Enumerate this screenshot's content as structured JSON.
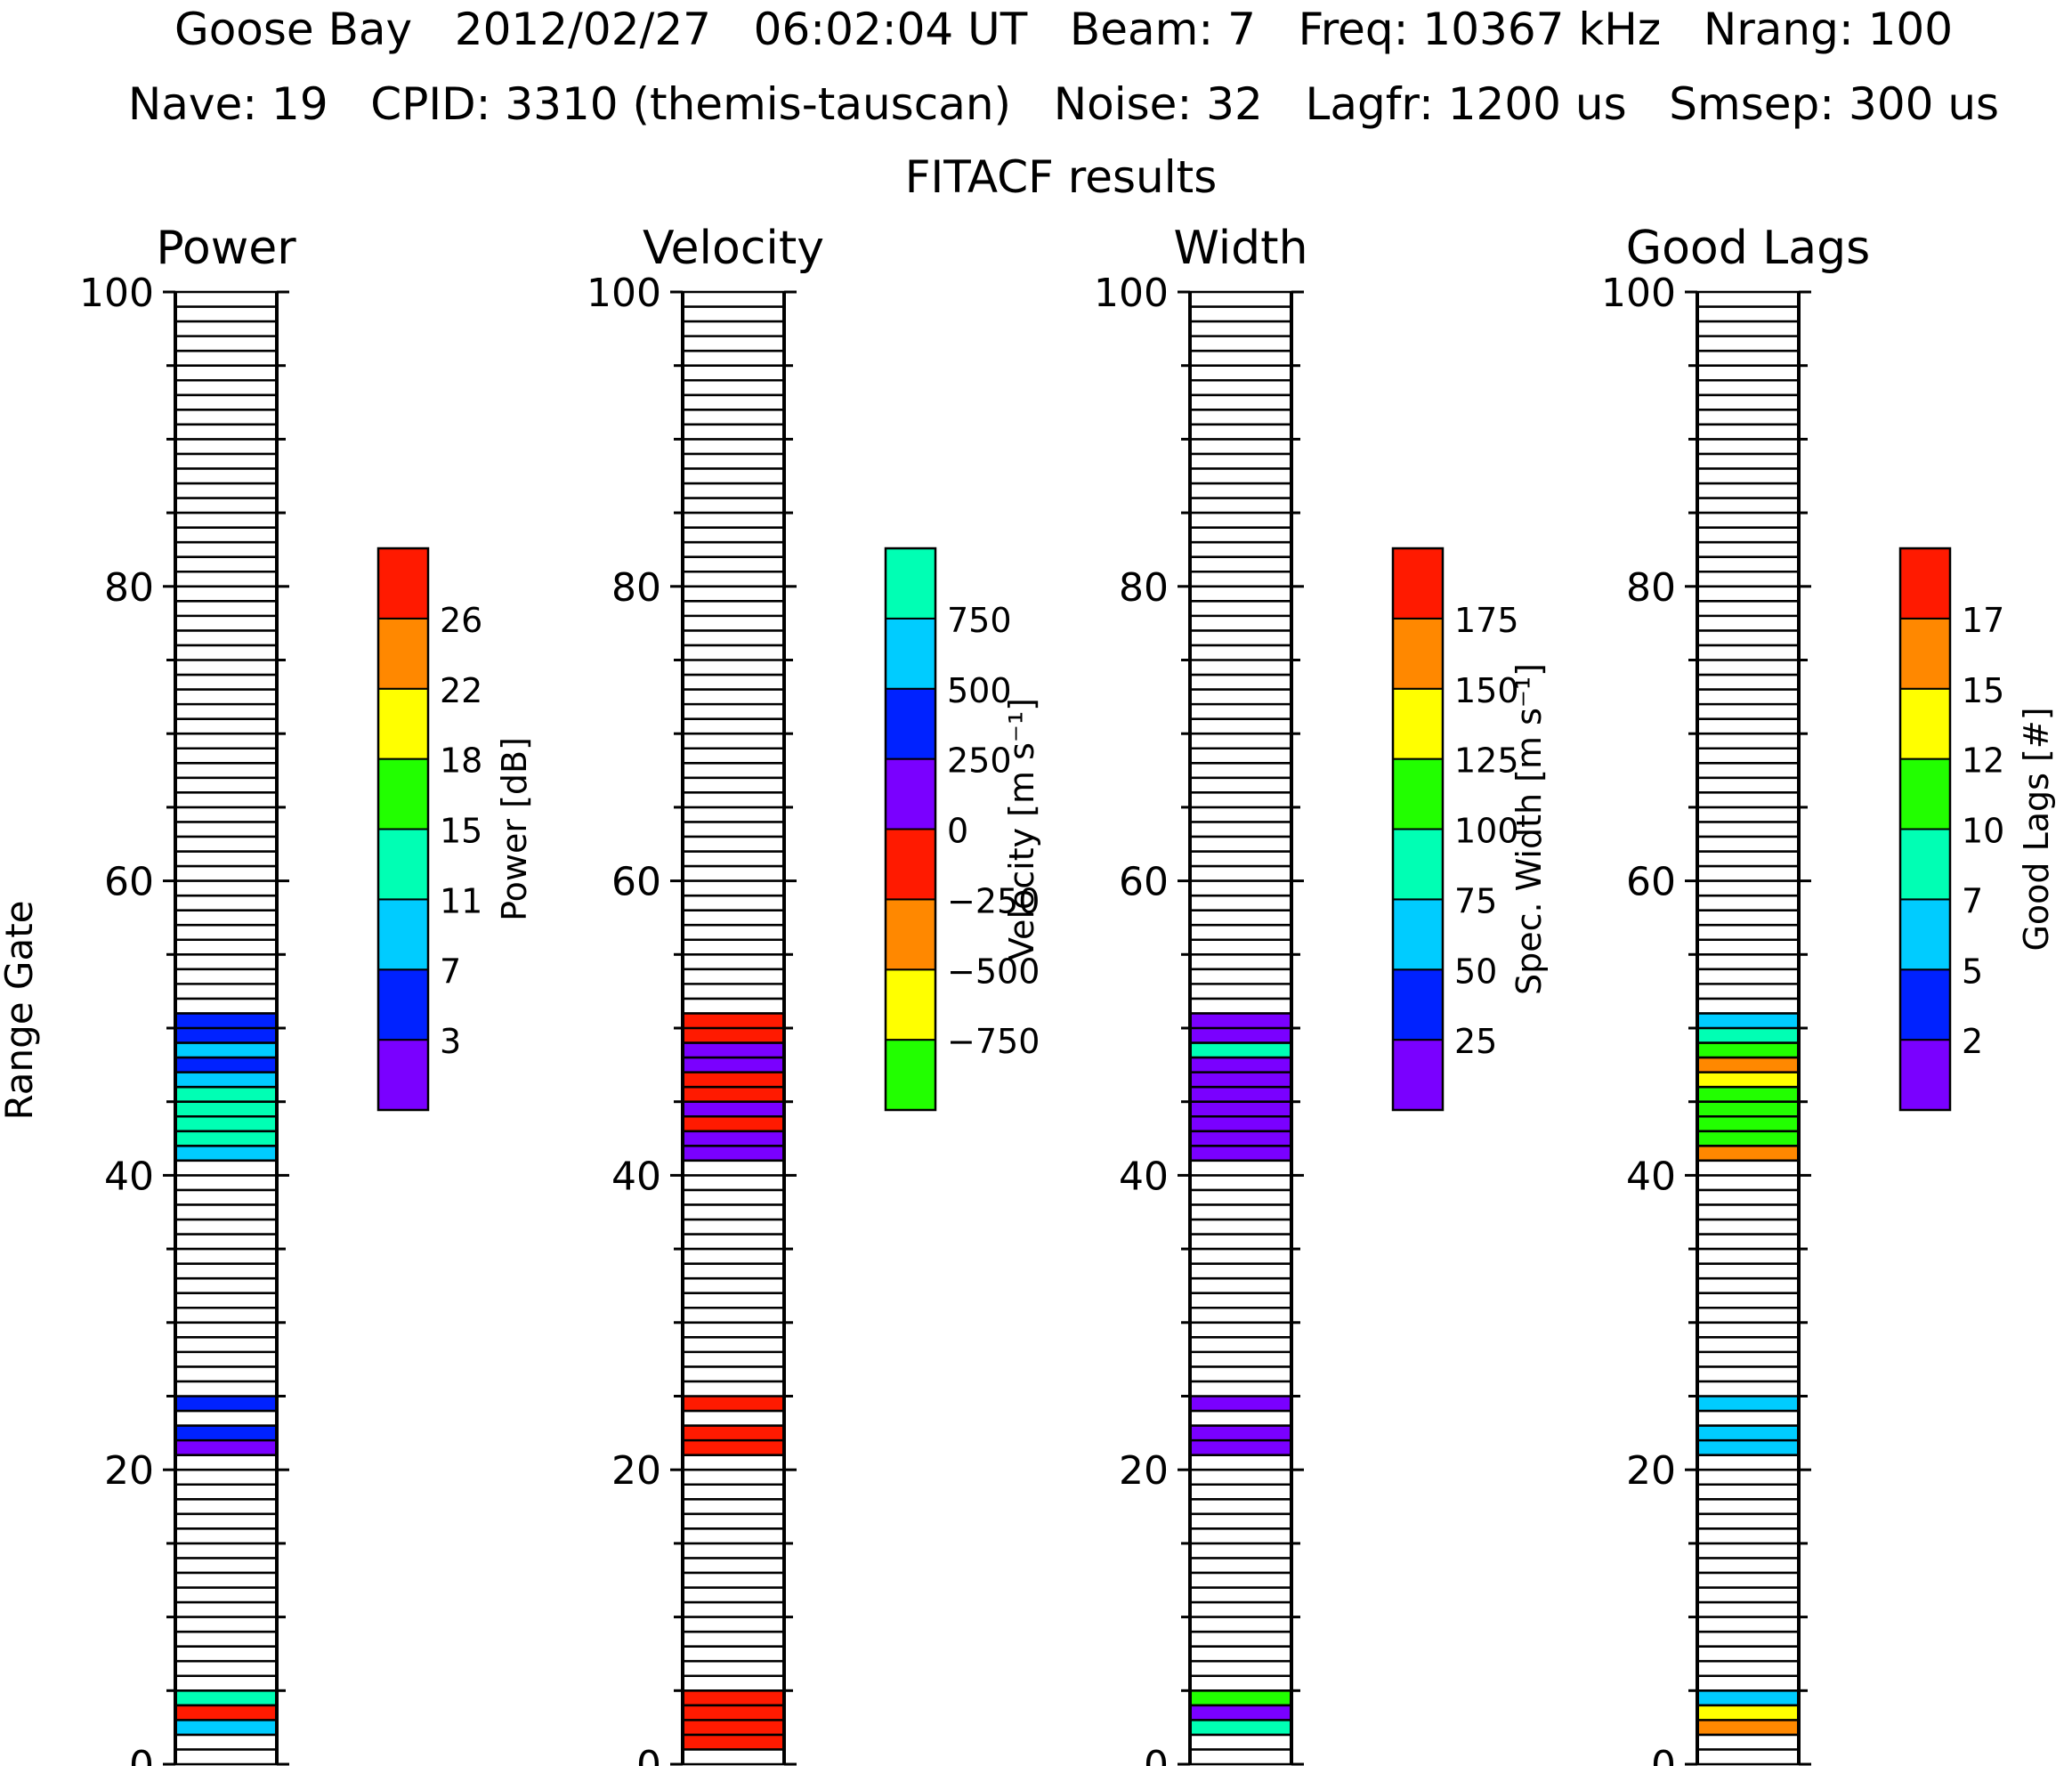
{
  "header": {
    "line1": "Goose Bay   2012/02/27   06:02:04 UT   Beam: 7   Freq: 10367 kHz   Nrang: 100",
    "line2": "Nave: 19   CPID: 3310 (themis-tauscan)   Noise: 32   Lagfr: 1200 us   Smsep: 300 us",
    "line3": "FITACF results"
  },
  "y_axis_label": "Range Gate",
  "chart_data": [
    {
      "type": "heatmap",
      "title": "Power",
      "ylabel": "Range Gate",
      "ylim": [
        0,
        100
      ],
      "yticks": [
        "0",
        "20",
        "40",
        "60",
        "80",
        "100"
      ],
      "colorbar": {
        "label": "Power [dB]",
        "colors": [
          "#7a00ff",
          "#0022ff",
          "#00ccff",
          "#00ffb4",
          "#22ff00",
          "#ffff00",
          "#ff8800",
          "#ff1a00"
        ],
        "tick_labels": [
          "3",
          "7",
          "11",
          "15",
          "18",
          "22",
          "26"
        ]
      },
      "cells": [
        {
          "gate": 2,
          "class": 2
        },
        {
          "gate": 3,
          "class": 7
        },
        {
          "gate": 4,
          "class": 3
        },
        {
          "gate": 21,
          "class": 0
        },
        {
          "gate": 22,
          "class": 1
        },
        {
          "gate": 24,
          "class": 1
        },
        {
          "gate": 41,
          "class": 2
        },
        {
          "gate": 42,
          "class": 3
        },
        {
          "gate": 43,
          "class": 3
        },
        {
          "gate": 44,
          "class": 3
        },
        {
          "gate": 45,
          "class": 3
        },
        {
          "gate": 46,
          "class": 2
        },
        {
          "gate": 47,
          "class": 1
        },
        {
          "gate": 48,
          "class": 2
        },
        {
          "gate": 49,
          "class": 1
        },
        {
          "gate": 50,
          "class": 1
        }
      ]
    },
    {
      "type": "heatmap",
      "title": "Velocity",
      "ylabel": "Range Gate",
      "ylim": [
        0,
        100
      ],
      "yticks": [
        "0",
        "20",
        "40",
        "60",
        "80",
        "100"
      ],
      "colorbar": {
        "label": "Velocity [m s⁻¹]",
        "colors": [
          "#22ff00",
          "#ffff00",
          "#ff8800",
          "#ff1a00",
          "#7a00ff",
          "#0022ff",
          "#00ccff",
          "#00ffb4"
        ],
        "tick_labels": [
          "−750",
          "−500",
          "−250",
          "0",
          "250",
          "500",
          "750"
        ]
      },
      "cells": [
        {
          "gate": 1,
          "class": 3
        },
        {
          "gate": 2,
          "class": 3
        },
        {
          "gate": 3,
          "class": 3
        },
        {
          "gate": 4,
          "class": 3
        },
        {
          "gate": 21,
          "class": 3
        },
        {
          "gate": 22,
          "class": 3
        },
        {
          "gate": 24,
          "class": 3
        },
        {
          "gate": 41,
          "class": 4
        },
        {
          "gate": 42,
          "class": 4
        },
        {
          "gate": 43,
          "class": 3
        },
        {
          "gate": 44,
          "class": 4
        },
        {
          "gate": 45,
          "class": 3
        },
        {
          "gate": 46,
          "class": 3
        },
        {
          "gate": 47,
          "class": 4
        },
        {
          "gate": 48,
          "class": 4
        },
        {
          "gate": 49,
          "class": 3
        },
        {
          "gate": 50,
          "class": 3
        }
      ]
    },
    {
      "type": "heatmap",
      "title": "Width",
      "ylabel": "Range Gate",
      "ylim": [
        0,
        100
      ],
      "yticks": [
        "0",
        "20",
        "40",
        "60",
        "80",
        "100"
      ],
      "colorbar": {
        "label": "Spec. Width [m s⁻¹]",
        "colors": [
          "#7a00ff",
          "#0022ff",
          "#00ccff",
          "#00ffb4",
          "#22ff00",
          "#ffff00",
          "#ff8800",
          "#ff1a00"
        ],
        "tick_labels": [
          "25",
          "50",
          "75",
          "100",
          "125",
          "150",
          "175"
        ]
      },
      "cells": [
        {
          "gate": 2,
          "class": 3
        },
        {
          "gate": 3,
          "class": 0
        },
        {
          "gate": 4,
          "class": 4
        },
        {
          "gate": 21,
          "class": 0
        },
        {
          "gate": 22,
          "class": 0
        },
        {
          "gate": 24,
          "class": 0
        },
        {
          "gate": 41,
          "class": 0
        },
        {
          "gate": 42,
          "class": 0
        },
        {
          "gate": 43,
          "class": 0
        },
        {
          "gate": 44,
          "class": 0
        },
        {
          "gate": 45,
          "class": 0
        },
        {
          "gate": 46,
          "class": 0
        },
        {
          "gate": 47,
          "class": 0
        },
        {
          "gate": 48,
          "class": 3
        },
        {
          "gate": 49,
          "class": 0
        },
        {
          "gate": 50,
          "class": 0
        }
      ]
    },
    {
      "type": "heatmap",
      "title": "Good Lags",
      "ylabel": "Range Gate",
      "ylim": [
        0,
        100
      ],
      "yticks": [
        "0",
        "20",
        "40",
        "60",
        "80",
        "100"
      ],
      "colorbar": {
        "label": "Good Lags [#]",
        "colors": [
          "#7a00ff",
          "#0022ff",
          "#00ccff",
          "#00ffb4",
          "#22ff00",
          "#ffff00",
          "#ff8800",
          "#ff1a00"
        ],
        "tick_labels": [
          "2",
          "5",
          "7",
          "10",
          "12",
          "15",
          "17"
        ]
      },
      "cells": [
        {
          "gate": 2,
          "class": 6
        },
        {
          "gate": 3,
          "class": 5
        },
        {
          "gate": 4,
          "class": 2
        },
        {
          "gate": 21,
          "class": 2
        },
        {
          "gate": 22,
          "class": 2
        },
        {
          "gate": 24,
          "class": 2
        },
        {
          "gate": 41,
          "class": 6
        },
        {
          "gate": 42,
          "class": 4
        },
        {
          "gate": 43,
          "class": 4
        },
        {
          "gate": 44,
          "class": 4
        },
        {
          "gate": 45,
          "class": 4
        },
        {
          "gate": 46,
          "class": 5
        },
        {
          "gate": 47,
          "class": 6
        },
        {
          "gate": 48,
          "class": 4
        },
        {
          "gate": 49,
          "class": 3
        },
        {
          "gate": 50,
          "class": 2
        }
      ]
    }
  ]
}
